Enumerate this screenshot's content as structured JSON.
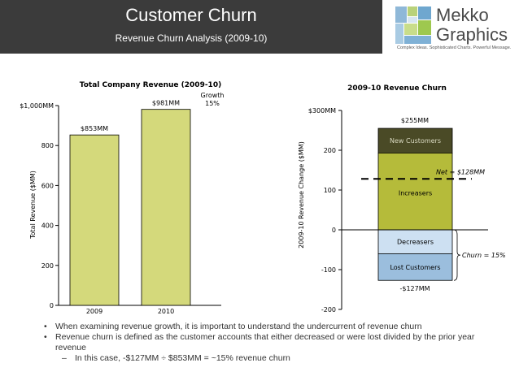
{
  "header": {
    "title": "Customer Churn",
    "subtitle": "Revenue Churn Analysis (2009-10)"
  },
  "logo": {
    "word1": "Mekko",
    "word2": "Graphics",
    "tagline": "Complex Ideas. Sophisticated Charts. Powerful Message."
  },
  "colors": {
    "header_bg": "#3b3b3b",
    "bar_fill": "#d4d97b",
    "increase_fill": "#b5bb3a",
    "newcust_fill": "#4a4a26",
    "decrease_fill": "#cde0f2",
    "lostcust_fill": "#9bbedd"
  },
  "chart_data": [
    {
      "type": "bar",
      "title": "Total Company Revenue (2009-10)",
      "ylabel": "Total Revenue ($MM)",
      "categories": [
        "2009",
        "2010"
      ],
      "values": [
        853,
        981
      ],
      "data_labels": [
        "$853MM",
        "$981MM"
      ],
      "ylim": [
        0,
        1000
      ],
      "yticks": [
        0,
        200,
        400,
        600,
        800,
        1000
      ],
      "ytick_labels": [
        "0",
        "200",
        "400",
        "600",
        "800",
        "$1,000MM"
      ],
      "annotation": {
        "label": "Growth",
        "value": "15%"
      }
    },
    {
      "type": "bar",
      "title": "2009-10 Revenue Churn",
      "ylabel": "2009-10 Revenue Change ($MM)",
      "ylim": [
        -200,
        300
      ],
      "yticks": [
        -200,
        -100,
        0,
        100,
        200,
        300
      ],
      "ytick_labels": [
        "-200",
        "-100",
        "0",
        "100",
        "200",
        "$300MM"
      ],
      "segments": [
        {
          "name": "New Customers",
          "from": 193,
          "to": 255
        },
        {
          "name": "Increasers",
          "from": 0,
          "to": 193
        },
        {
          "name": "Decreasers",
          "from": -60,
          "to": 0
        },
        {
          "name": "Lost Customers",
          "from": -127,
          "to": -60
        }
      ],
      "top_label": "$255MM",
      "bottom_label": "-$127MM",
      "net_value": 128,
      "net_label": "Net = $128MM",
      "churn_label": "Churn = 15%"
    }
  ],
  "bullets": [
    "When examining revenue growth, it is important to understand the undercurrent of revenue churn",
    "Revenue churn is defined as the customer accounts that either decreased or were lost divided by the prior year revenue"
  ],
  "sub_bullet": "In this case, -$127MM ÷ $853MM = ~15% revenue churn"
}
